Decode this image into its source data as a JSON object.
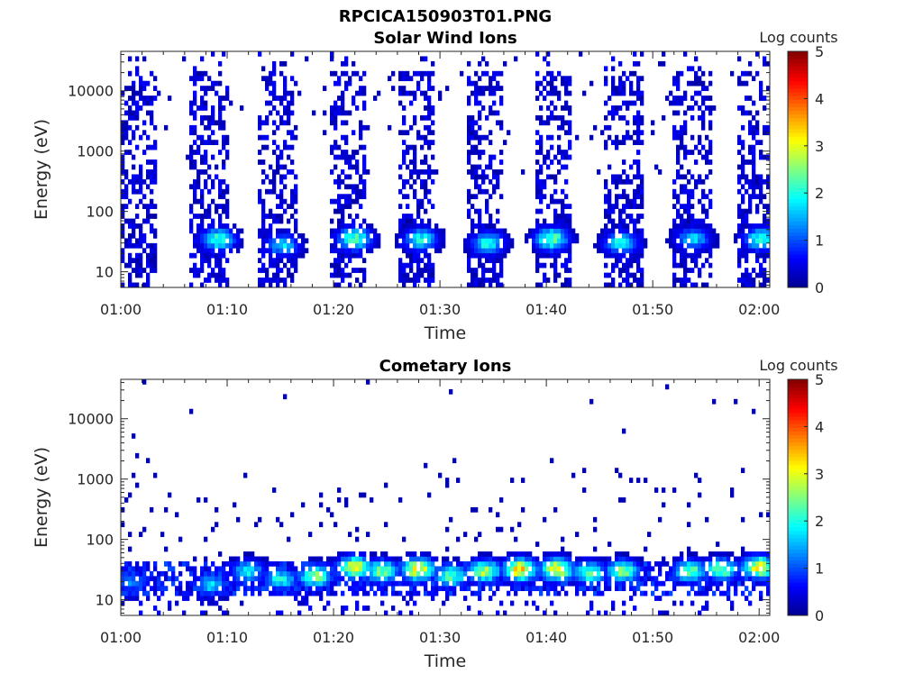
{
  "figure_title": "RPCICA150903T01.PNG",
  "colormap": [
    "#00008f",
    "#0000ff",
    "#0080ff",
    "#00ffff",
    "#80ff80",
    "#ffff00",
    "#ff8000",
    "#ff0000",
    "#800000"
  ],
  "chart_data": [
    {
      "type": "heatmap",
      "title": "Solar Wind Ions",
      "xlabel": "Time",
      "ylabel": "Energy (eV)",
      "x_ticks": [
        "01:00",
        "01:10",
        "01:20",
        "01:30",
        "01:40",
        "01:50",
        "02:00"
      ],
      "xlim_minutes": [
        0,
        61
      ],
      "y_scale": "log",
      "ylim": [
        5.5,
        45000
      ],
      "y_ticks": [
        "10",
        "100",
        "1000",
        "10000"
      ],
      "colorbar": {
        "label": "Log counts",
        "range": [
          0,
          5
        ],
        "ticks": [
          "0",
          "1",
          "2",
          "3",
          "4",
          "5"
        ]
      },
      "grid": false,
      "bursts_start_minutes": [
        0,
        6.5,
        13,
        19.5,
        26,
        32.5,
        39,
        45.5,
        52,
        58
      ],
      "burst_duration_minutes": 3.5,
      "hot_spots": [
        {
          "t": 9.2,
          "energy": 35,
          "log_counts": 2.5
        },
        {
          "t": 15.2,
          "energy": 28,
          "log_counts": 2.0
        },
        {
          "t": 22.0,
          "energy": 35,
          "log_counts": 2.8
        },
        {
          "t": 28.2,
          "energy": 35,
          "log_counts": 2.3
        },
        {
          "t": 34.5,
          "energy": 30,
          "log_counts": 2.3
        },
        {
          "t": 40.5,
          "energy": 35,
          "log_counts": 2.8
        },
        {
          "t": 47.0,
          "energy": 30,
          "log_counts": 2.3
        },
        {
          "t": 53.8,
          "energy": 35,
          "log_counts": 2.0
        },
        {
          "t": 60.2,
          "energy": 35,
          "log_counts": 2.6
        }
      ]
    },
    {
      "type": "heatmap",
      "title": "Cometary Ions",
      "xlabel": "Time",
      "ylabel": "Energy (eV)",
      "x_ticks": [
        "01:00",
        "01:10",
        "01:20",
        "01:30",
        "01:40",
        "01:50",
        "02:00"
      ],
      "xlim_minutes": [
        0,
        61
      ],
      "y_scale": "log",
      "ylim": [
        5.5,
        45000
      ],
      "y_ticks": [
        "10",
        "100",
        "1000",
        "10000"
      ],
      "colorbar": {
        "label": "Log counts",
        "range": [
          0,
          5
        ],
        "ticks": [
          "0",
          "1",
          "2",
          "3",
          "4",
          "5"
        ]
      },
      "grid": false,
      "band_energy_range": [
        12,
        40
      ],
      "hot_spots": [
        {
          "t": 1.0,
          "energy": 20,
          "log_counts": 1.5
        },
        {
          "t": 8.5,
          "energy": 18,
          "log_counts": 2.0
        },
        {
          "t": 12.0,
          "energy": 30,
          "log_counts": 2.2
        },
        {
          "t": 15.0,
          "energy": 22,
          "log_counts": 2.3
        },
        {
          "t": 18.3,
          "energy": 25,
          "log_counts": 3.0
        },
        {
          "t": 22.0,
          "energy": 35,
          "log_counts": 3.5
        },
        {
          "t": 24.5,
          "energy": 30,
          "log_counts": 3.0
        },
        {
          "t": 28.0,
          "energy": 32,
          "log_counts": 3.8
        },
        {
          "t": 31.0,
          "energy": 25,
          "log_counts": 2.8
        },
        {
          "t": 34.2,
          "energy": 30,
          "log_counts": 3.2
        },
        {
          "t": 37.5,
          "energy": 32,
          "log_counts": 3.9
        },
        {
          "t": 41.0,
          "energy": 32,
          "log_counts": 3.8
        },
        {
          "t": 44.0,
          "energy": 28,
          "log_counts": 2.8
        },
        {
          "t": 47.2,
          "energy": 30,
          "log_counts": 3.0
        },
        {
          "t": 53.5,
          "energy": 30,
          "log_counts": 2.8
        },
        {
          "t": 56.5,
          "energy": 32,
          "log_counts": 2.9
        },
        {
          "t": 60.0,
          "energy": 35,
          "log_counts": 3.7
        }
      ]
    }
  ]
}
